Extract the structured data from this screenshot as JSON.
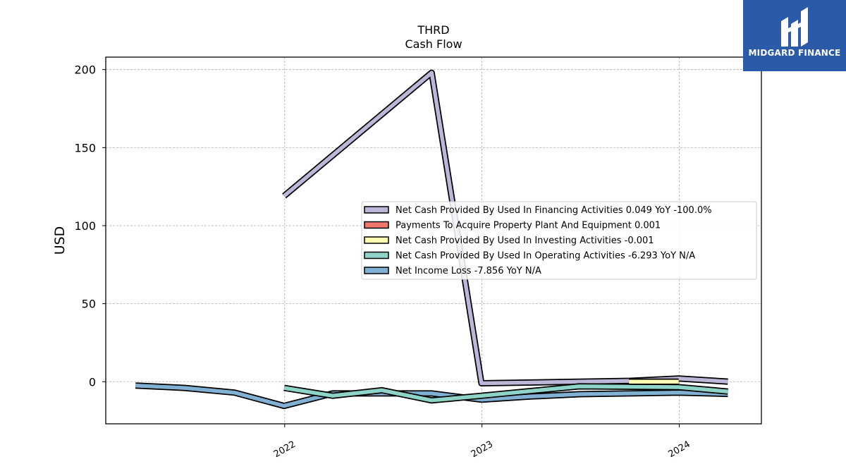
{
  "brand": {
    "name": "MIDGARD FINANCE",
    "bg_color": "#2a5aa8"
  },
  "chart_data": {
    "type": "line",
    "title": "THRD",
    "subtitle": "Cash Flow",
    "ylabel": "USD",
    "xlabel": "",
    "x_ticks": [
      "2022",
      "2023",
      "2024"
    ],
    "y_ticks": [
      0,
      50,
      100,
      150,
      200
    ],
    "xlim": [
      "2021-02-04",
      "2024-06-01"
    ],
    "ylim": [
      -27,
      208
    ],
    "grid": true,
    "legend_position": "right",
    "series": [
      {
        "name": "Net Cash Provided By Used In Financing Activities  0.049 YoY -100.0%",
        "color": "#bcb6d9",
        "points": [
          [
            "2021-12-31",
            119
          ],
          [
            "2022-09-30",
            198
          ],
          [
            "2022-12-31",
            -1
          ],
          [
            "2023-09-30",
            0.5
          ],
          [
            "2023-12-31",
            2
          ],
          [
            "2024-03-31",
            0.049
          ]
        ]
      },
      {
        "name": "Payments To Acquire Property Plant And Equipment  0.001",
        "color": "#f0776c",
        "points": [
          [
            "2023-09-30",
            0.001
          ],
          [
            "2023-12-31",
            0.001
          ]
        ]
      },
      {
        "name": "Net Cash Provided By Used In Investing Activities  -0.001",
        "color": "#ffffb3",
        "points": [
          [
            "2023-09-30",
            -0.001
          ],
          [
            "2023-12-31",
            -0.001
          ]
        ]
      },
      {
        "name": "Net Cash Provided By Used In Operating Activities  -6.293 YoY N/A",
        "color": "#8dd3c7",
        "points": [
          [
            "2021-12-31",
            -4
          ],
          [
            "2022-03-31",
            -9
          ],
          [
            "2022-06-30",
            -5.5
          ],
          [
            "2022-09-30",
            -12
          ],
          [
            "2022-12-31",
            -9
          ],
          [
            "2023-06-30",
            -3
          ],
          [
            "2023-12-31",
            -3.5
          ],
          [
            "2024-03-31",
            -6.293
          ]
        ]
      },
      {
        "name": "Net Income Loss  -7.856 YoY N/A",
        "color": "#80b1d3",
        "points": [
          [
            "2021-03-31",
            -2.5
          ],
          [
            "2021-06-30",
            -4
          ],
          [
            "2021-09-30",
            -7
          ],
          [
            "2021-12-31",
            -15.5
          ],
          [
            "2022-03-31",
            -7.5
          ],
          [
            "2022-06-30",
            -7.5
          ],
          [
            "2022-09-30",
            -7.5
          ],
          [
            "2022-12-31",
            -11.5
          ],
          [
            "2023-03-31",
            -9.5
          ],
          [
            "2023-06-30",
            -8
          ],
          [
            "2023-09-30",
            -7.5
          ],
          [
            "2023-12-31",
            -7
          ],
          [
            "2024-03-31",
            -7.856
          ]
        ]
      }
    ]
  }
}
